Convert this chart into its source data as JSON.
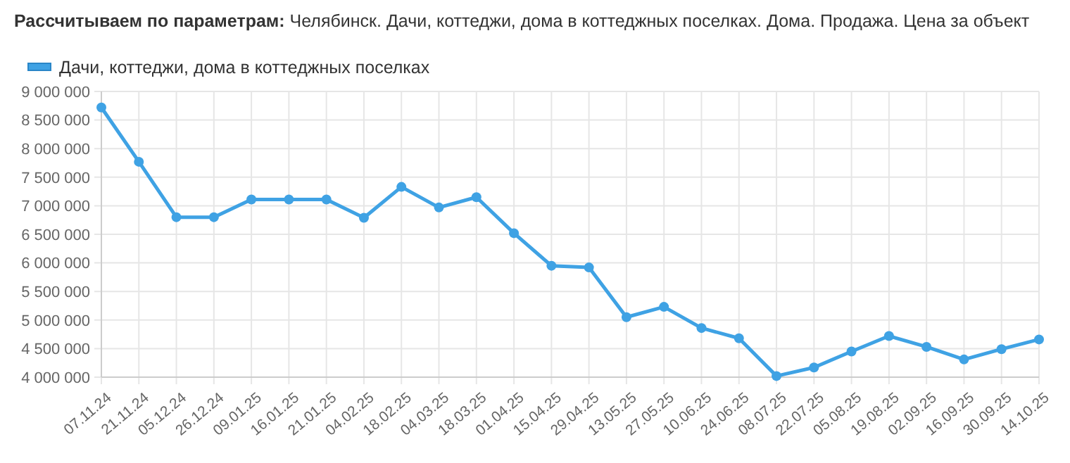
{
  "chart_data": {
    "type": "line",
    "title": "Рассчитываем по параметрам: Челябинск. Дачи, коттеджи, дома в коттеджных поселках. Дома. Продажа. Цена за объект",
    "categories": [
      "07.11.24",
      "21.11.24",
      "05.12.24",
      "26.12.24",
      "09.01.25",
      "16.01.25",
      "21.01.25",
      "04.02.25",
      "18.02.25",
      "04.03.25",
      "18.03.25",
      "01.04.25",
      "15.04.25",
      "29.04.25",
      "13.05.25",
      "27.05.25",
      "10.06.25",
      "24.06.25",
      "08.07.25",
      "22.07.25",
      "05.08.25",
      "19.08.25",
      "02.09.25",
      "16.09.25",
      "30.09.25",
      "14.10.25"
    ],
    "series": [
      {
        "name": "Дачи, коттеджи, дома в коттеджных поселках",
        "color": "#3fa2e4",
        "values": [
          8720000,
          7770000,
          6800000,
          6800000,
          7110000,
          7110000,
          7110000,
          6790000,
          7330000,
          6970000,
          7150000,
          6520000,
          5950000,
          5920000,
          5050000,
          5230000,
          4860000,
          4680000,
          4020000,
          4170000,
          4450000,
          4720000,
          4530000,
          4310000,
          4490000,
          4660000
        ]
      }
    ],
    "ylim": [
      4000000,
      9000000
    ],
    "yticks": [
      {
        "value": 4000000,
        "label": "4 000 000"
      },
      {
        "value": 4500000,
        "label": "4 500 000"
      },
      {
        "value": 5000000,
        "label": "5 000 000"
      },
      {
        "value": 5500000,
        "label": "5 500 000"
      },
      {
        "value": 6000000,
        "label": "6 000 000"
      },
      {
        "value": 6500000,
        "label": "6 500 000"
      },
      {
        "value": 7000000,
        "label": "7 000 000"
      },
      {
        "value": 7500000,
        "label": "7 500 000"
      },
      {
        "value": 8000000,
        "label": "8 000 000"
      },
      {
        "value": 8500000,
        "label": "8 500 000"
      },
      {
        "value": 9000000,
        "label": "9 000 000"
      }
    ],
    "grid": true,
    "legend": "top left",
    "marker": "circle",
    "line_style": "solid"
  }
}
